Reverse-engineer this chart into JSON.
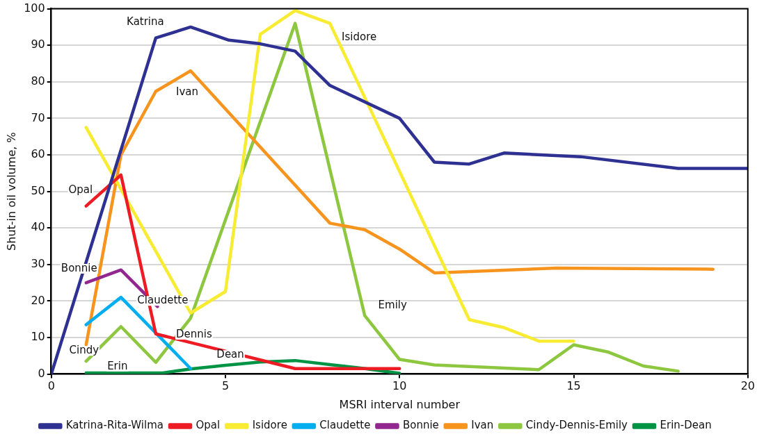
{
  "chart_data": {
    "type": "line",
    "xlabel": "MSRI interval number",
    "ylabel": "Shut-in oil volume, %",
    "xlim": [
      0,
      20
    ],
    "xticks": [
      0,
      5,
      10,
      15,
      20
    ],
    "ylim": [
      0,
      100
    ],
    "yticks": [
      0,
      10,
      20,
      30,
      40,
      50,
      60,
      70,
      80,
      90,
      100
    ],
    "grid": "y",
    "legend": "bottom",
    "marker": "none",
    "line_style": "solid",
    "series": [
      {
        "name": "Katrina-Rita-Wilma",
        "color": "#2e3192",
        "x": [
          0,
          3,
          4,
          5.1,
          6,
          7,
          8,
          10,
          11,
          12,
          13,
          15.2,
          18,
          20
        ],
        "values": [
          0,
          92,
          95,
          91.4,
          90.4,
          88.4,
          79,
          70,
          58,
          57.5,
          60.5,
          59.5,
          56.3,
          56.3
        ]
      },
      {
        "name": "Opal",
        "color": "#ed1c24",
        "x": [
          1,
          2,
          3,
          7,
          10
        ],
        "values": [
          46,
          54.5,
          11,
          1.5,
          1.5
        ]
      },
      {
        "name": "Isidore",
        "color": "#f7ec31",
        "x": [
          1,
          4,
          5,
          6,
          7,
          8,
          12,
          13,
          14,
          15
        ],
        "values": [
          67.5,
          16.7,
          22.6,
          93,
          99.5,
          96,
          14.9,
          12.7,
          9,
          9
        ]
      },
      {
        "name": "Claudette",
        "color": "#00aeef",
        "x": [
          1,
          2,
          4
        ],
        "values": [
          13.5,
          21,
          1.5
        ]
      },
      {
        "name": "Bonnie",
        "color": "#92278f",
        "x": [
          1,
          2,
          3.05
        ],
        "values": [
          25,
          28.5,
          18.5
        ]
      },
      {
        "name": "Ivan",
        "color": "#f7941d",
        "x": [
          1,
          2,
          3,
          4,
          8,
          9,
          10,
          11,
          14.5,
          19
        ],
        "values": [
          8,
          60,
          77.4,
          83,
          41.3,
          39.5,
          34.2,
          27.7,
          29,
          28.7
        ]
      },
      {
        "name": "Cindy-Dennis-Emily",
        "color": "#8dc63f",
        "x": [
          1,
          2,
          3,
          4,
          7,
          9,
          10,
          11,
          14,
          15,
          16,
          17,
          18
        ],
        "values": [
          3.5,
          13,
          3.2,
          15.3,
          96,
          16,
          4,
          2.5,
          1.2,
          8,
          6,
          2.2,
          0.8
        ]
      },
      {
        "name": "Erin-Dean",
        "color": "#009444",
        "x": [
          1,
          3.2,
          4,
          5,
          6,
          7,
          8,
          9,
          10
        ],
        "values": [
          0.3,
          0.3,
          1.4,
          2.4,
          3.3,
          3.7,
          2.6,
          1.5,
          0.2
        ]
      }
    ],
    "annotations": [
      {
        "text": "Katrina",
        "x": 3,
        "y": 92
      },
      {
        "text": "Ivan",
        "x": 4,
        "y": 83
      },
      {
        "text": "Isidore",
        "x": 8,
        "y": 96
      },
      {
        "text": "Opal",
        "x": 1,
        "y": 46
      },
      {
        "text": "Bonnie",
        "x": 1,
        "y": 25
      },
      {
        "text": "Claudette",
        "x": 2,
        "y": 21
      },
      {
        "text": "Dennis",
        "x": 4,
        "y": 15.3
      },
      {
        "text": "Cindy",
        "x": 1,
        "y": 3.5
      },
      {
        "text": "Erin",
        "x": 1,
        "y": 0.3
      },
      {
        "text": "Dean",
        "x": 6,
        "y": 3.3
      },
      {
        "text": "Emily",
        "x": 9,
        "y": 16
      }
    ]
  }
}
